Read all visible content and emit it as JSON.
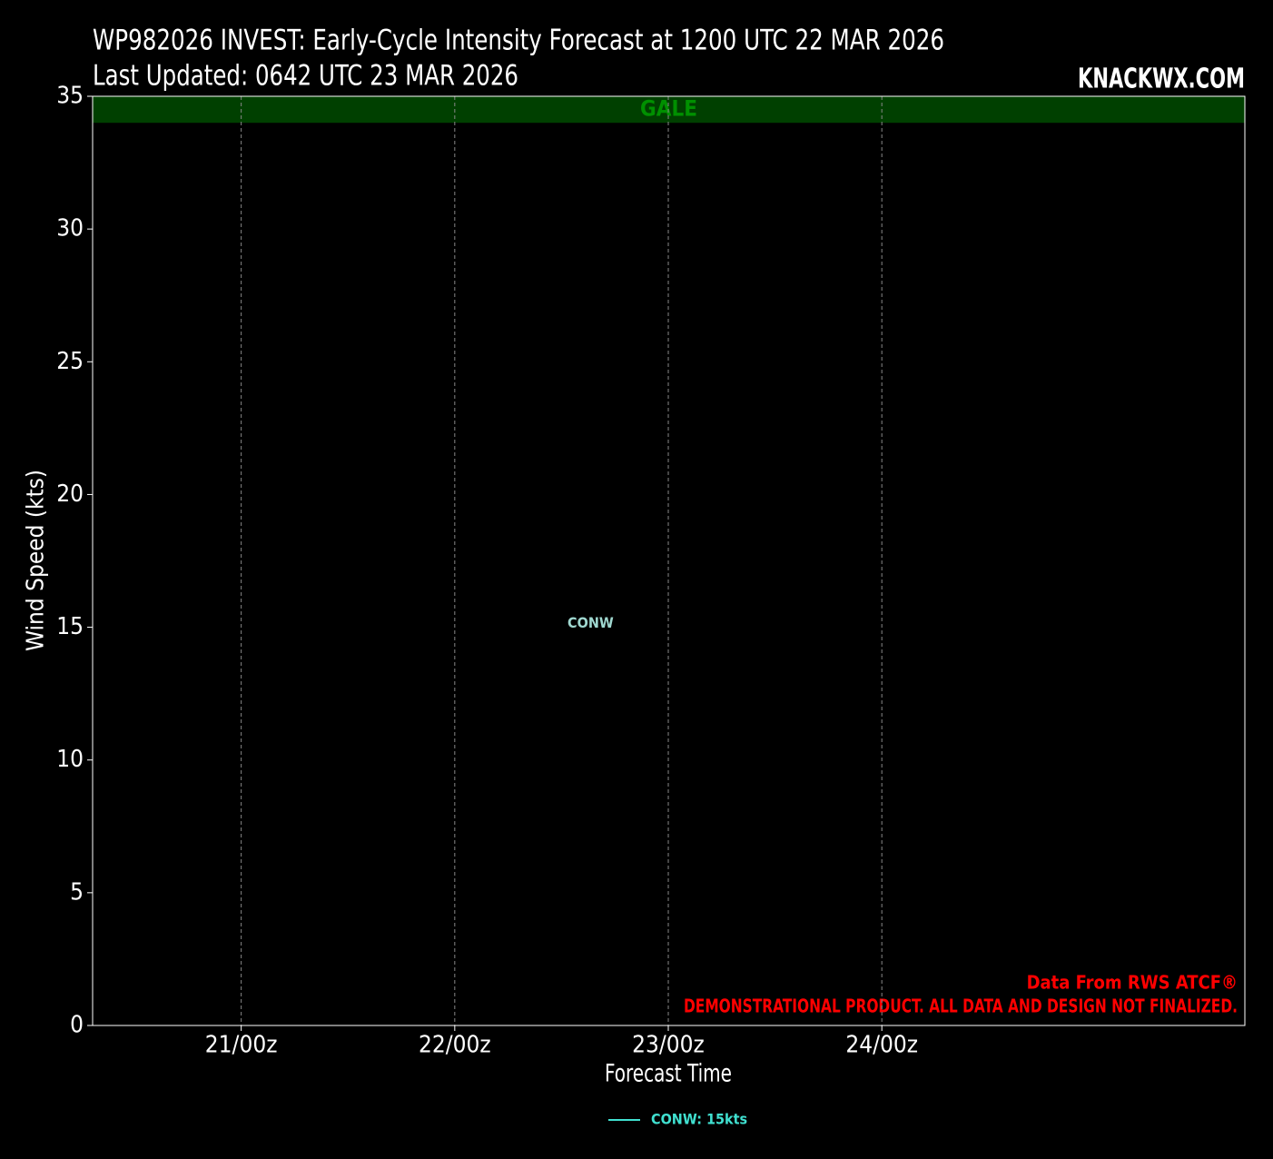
{
  "chart_data": {
    "type": "line",
    "title": "WP982026 INVEST: Early-Cycle Intensity Forecast at 1200 UTC 22 MAR 2026",
    "subtitle": "Last Updated: 0642 UTC 23 MAR 2026",
    "brand": "KNACKWX.COM",
    "x_label": "Forecast Time",
    "y_label": "Wind Speed (kts)",
    "x": [
      36
    ],
    "series": [
      {
        "name": "CONW",
        "legend_label": "CONW: 15kts",
        "color": "#40e0d0",
        "values": [
          15
        ]
      }
    ],
    "xlim": [
      -16.7,
      112.8
    ],
    "xticks": [
      {
        "value": 0,
        "label": "21/00z"
      },
      {
        "value": 24,
        "label": "22/00z"
      },
      {
        "value": 48,
        "label": "23/00z"
      },
      {
        "value": 72,
        "label": "24/00z"
      }
    ],
    "ylim": [
      0,
      35
    ],
    "yticks": [
      0,
      5,
      10,
      15,
      20,
      25,
      30,
      35
    ],
    "grid": true,
    "bands": [
      {
        "label": "GALE",
        "from": 34,
        "to": 35,
        "color": "#004000",
        "text_color": "#009000"
      }
    ],
    "annotations": [
      "Data From RWS ATCF®",
      "DEMONSTRATIONAL PRODUCT. ALL DATA AND DESIGN NOT FINALIZED."
    ]
  }
}
